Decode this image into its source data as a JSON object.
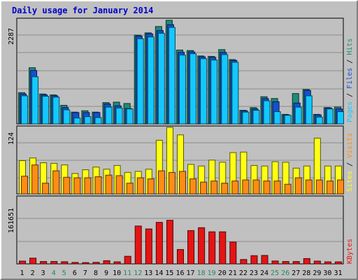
{
  "title": "Daily usage for January 2014",
  "colors": {
    "background": "#c0c0c0",
    "title": "#0000c8",
    "hits": "#1e8c78",
    "files": "#1450d2",
    "pages": "#14c8ff",
    "visits": "#ff8c14",
    "sites": "#ffff14",
    "kbytes": "#e61414",
    "weekend_label": "#1e8c5a",
    "weekday_label": "#000000"
  },
  "chart_data": {
    "type": "bar",
    "x": [
      "1",
      "2",
      "3",
      "4",
      "5",
      "6",
      "7",
      "8",
      "9",
      "10",
      "11",
      "12",
      "13",
      "14",
      "15",
      "16",
      "17",
      "18",
      "19",
      "20",
      "21",
      "22",
      "23",
      "24",
      "25",
      "26",
      "27",
      "28",
      "29",
      "30",
      "31"
    ],
    "weekend_days": [
      "4",
      "5",
      "11",
      "12",
      "18",
      "19",
      "25",
      "26"
    ],
    "panels": [
      {
        "name": "hits-files-pages",
        "ymax_label": "2287",
        "ymax": 2287,
        "legend": [
          {
            "label": "Hits",
            "color_key": "hits"
          },
          {
            "label": "Files",
            "color_key": "files"
          },
          {
            "label": "Pages",
            "color_key": "pages"
          }
        ],
        "series": [
          {
            "name": "Hits",
            "values": [
              690,
              1240,
              660,
              640,
              410,
              260,
              290,
              260,
              470,
              480,
              450,
              1960,
              2010,
              2150,
              2287,
              1630,
              1620,
              1500,
              1490,
              1640,
              1420,
              300,
              360,
              600,
              560,
              210,
              670,
              760,
              210,
              360,
              370
            ]
          },
          {
            "name": "Files",
            "values": [
              660,
              1180,
              640,
              620,
              360,
              250,
              250,
              250,
              440,
              400,
              340,
              1940,
              1990,
              2060,
              2190,
              1580,
              1590,
              1480,
              1470,
              1580,
              1400,
              290,
              330,
              560,
              490,
              200,
              460,
              740,
              200,
              350,
              330
            ]
          },
          {
            "name": "Pages",
            "values": [
              620,
              1040,
              610,
              590,
              310,
              130,
              160,
              140,
              370,
              350,
              330,
              1880,
              1920,
              2000,
              2130,
              1520,
              1550,
              1440,
              1410,
              1530,
              1360,
              260,
              300,
              510,
              270,
              190,
              370,
              620,
              150,
              330,
              270
            ]
          }
        ]
      },
      {
        "name": "visits-sites",
        "ymax_label": "124",
        "ymax": 124,
        "legend": [
          {
            "label": "Visits",
            "color_key": "visits"
          },
          {
            "label": "Sites",
            "color_key": "sites"
          }
        ],
        "series": [
          {
            "name": "Sites",
            "values": [
              62,
              67,
              58,
              57,
              54,
              38,
              45,
              50,
              46,
              53,
              40,
              42,
              46,
              100,
              124,
              110,
              55,
              52,
              63,
              59,
              77,
              78,
              53,
              52,
              60,
              59,
              48,
              52,
              104,
              52,
              52
            ]
          },
          {
            "name": "Visits",
            "values": [
              33,
              54,
              20,
              43,
              31,
              30,
              30,
              32,
              35,
              34,
              20,
              30,
              28,
              43,
              40,
              42,
              28,
              22,
              24,
              20,
              24,
              26,
              26,
              24,
              24,
              18,
              30,
              26,
              26,
              24,
              26
            ]
          }
        ]
      },
      {
        "name": "kbytes",
        "ymax_label": "161651",
        "ymax": 161651,
        "legend": [
          {
            "label": "KBytes",
            "color_key": "kbytes"
          }
        ],
        "series": [
          {
            "name": "KBytes",
            "values": [
              6800,
              14000,
              5800,
              5800,
              5300,
              3600,
              3200,
              3800,
              7800,
              5000,
              18500,
              92000,
              85000,
              101000,
              106000,
              35000,
              81000,
              88000,
              78000,
              78000,
              53000,
              10700,
              20000,
              20600,
              7000,
              5800,
              5800,
              13000,
              6800,
              5000,
              5000
            ]
          }
        ]
      }
    ]
  }
}
